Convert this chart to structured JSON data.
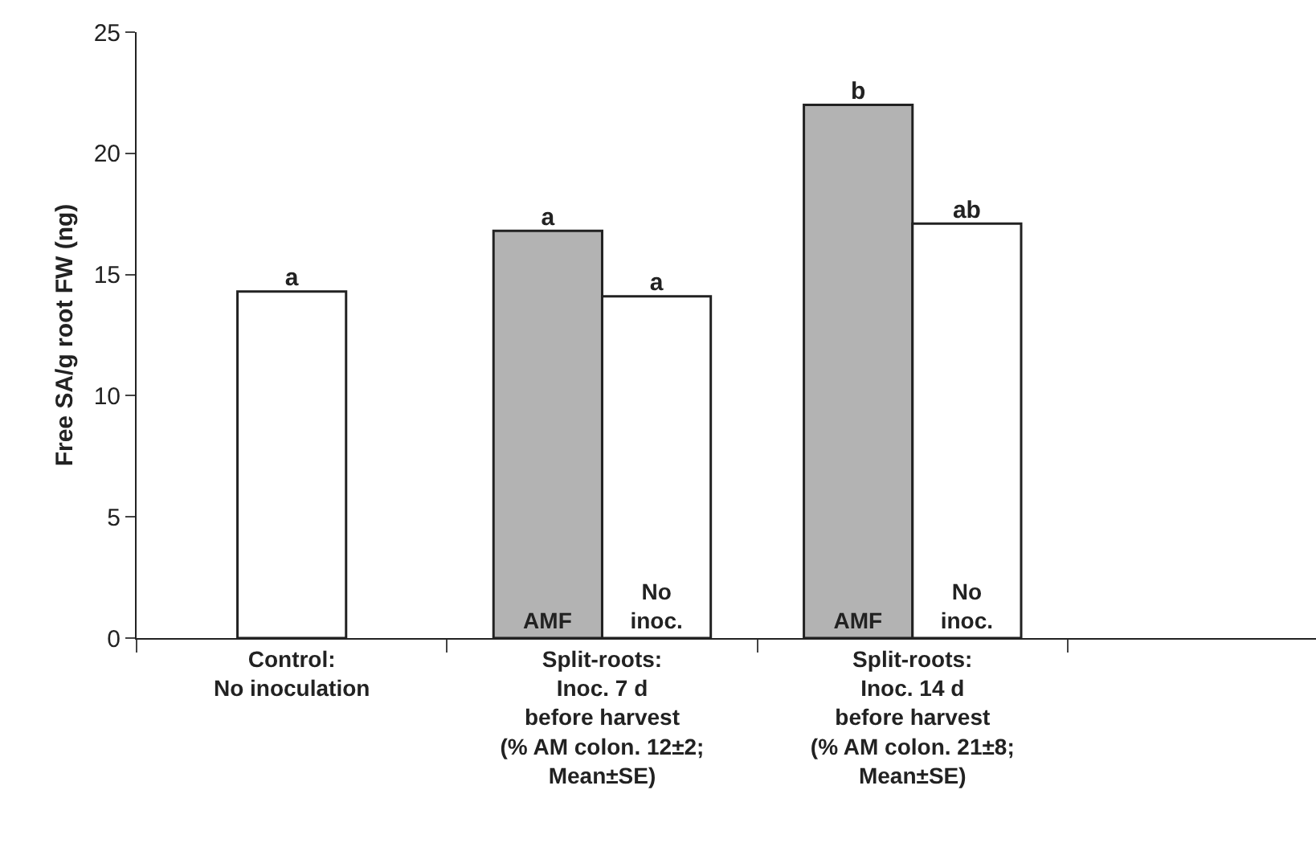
{
  "chart_data": {
    "type": "bar",
    "ylabel": "Free SA/g root FW (ng)",
    "categories": [
      "Control:\nNo inoculation",
      "Split-roots:\nInoc. 7 d\nbefore harvest\n(% AM colon. 12±2;\nMean±SE)",
      "Split-roots:\nInoc. 14 d\nbefore harvest\n(% AM colon. 21±8;\nMean±SE)"
    ],
    "series": [
      {
        "color": "#ffffff",
        "values": [
          14.3,
          null,
          null
        ],
        "value_labels": [
          "a",
          null,
          null
        ]
      },
      {
        "name": "AMF",
        "color": "#b3b3b3",
        "values": [
          null,
          16.8,
          22.0
        ],
        "value_labels": [
          null,
          "a",
          "b"
        ]
      },
      {
        "name": "No inoc.",
        "color": "#ffffff",
        "values": [
          null,
          14.1,
          17.1
        ],
        "value_labels": [
          null,
          "a",
          "ab"
        ]
      }
    ],
    "ylim": [
      0,
      25
    ],
    "yticks": [
      0,
      5,
      10,
      15,
      20,
      25
    ],
    "grid": false,
    "legend": false
  }
}
